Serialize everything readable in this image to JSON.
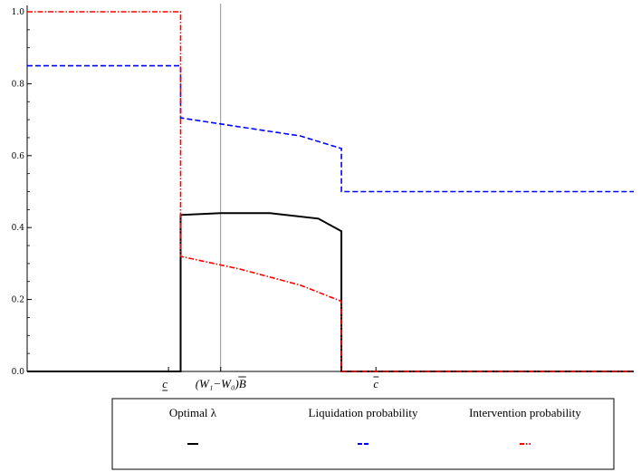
{
  "chart_data": {
    "type": "line",
    "title": "",
    "xlabel": "",
    "ylabel": "",
    "xlim": [
      0,
      1
    ],
    "ylim": [
      0,
      1
    ],
    "grid": false,
    "y_ticks": [
      "0.0",
      "0.2",
      "0.4",
      "0.6",
      "0.8",
      "1.0"
    ],
    "y_tick_values": [
      0,
      0.2,
      0.4,
      0.6,
      0.8,
      1.0
    ],
    "x_marks": [
      {
        "label": "c",
        "decoration": "underline",
        "x": 0.233
      },
      {
        "label": "(W₁−W₀)B",
        "decoration": "overline-B",
        "x": 0.319
      },
      {
        "label": "c",
        "decoration": "overline",
        "x": 0.575
      }
    ],
    "vertical_reference_line": {
      "x": 0.319
    },
    "legend_placement": "bottom",
    "series": [
      {
        "name": "Optimal λ",
        "color": "#000000",
        "dash": "solid",
        "points": [
          [
            0,
            0
          ],
          [
            0.253,
            0
          ],
          [
            0.253,
            0.435
          ],
          [
            0.319,
            0.44
          ],
          [
            0.4,
            0.44
          ],
          [
            0.48,
            0.425
          ],
          [
            0.518,
            0.39
          ],
          [
            0.518,
            0
          ],
          [
            1,
            0
          ]
        ]
      },
      {
        "name": "Liquidation probability",
        "color": "#0000ff",
        "dash": "dashed",
        "points": [
          [
            0,
            0.85
          ],
          [
            0.253,
            0.85
          ],
          [
            0.253,
            0.705
          ],
          [
            0.35,
            0.68
          ],
          [
            0.45,
            0.655
          ],
          [
            0.518,
            0.62
          ],
          [
            0.518,
            0.5
          ],
          [
            1,
            0.5
          ]
        ]
      },
      {
        "name": "Intervention probability",
        "color": "#ff0000",
        "dash": "dashdot",
        "points": [
          [
            0,
            1.0
          ],
          [
            0.253,
            1.0
          ],
          [
            0.253,
            0.32
          ],
          [
            0.35,
            0.285
          ],
          [
            0.45,
            0.24
          ],
          [
            0.518,
            0.195
          ],
          [
            0.518,
            0
          ],
          [
            1,
            0
          ]
        ]
      }
    ]
  },
  "legend": {
    "items": [
      {
        "label": "Optimal λ",
        "color": "#000000",
        "dash": "solid"
      },
      {
        "label": "Liquidation probability",
        "color": "#0000ff",
        "dash": "dashed"
      },
      {
        "label": "Intervention probability",
        "color": "#ff0000",
        "dash": "dashdot"
      }
    ]
  }
}
